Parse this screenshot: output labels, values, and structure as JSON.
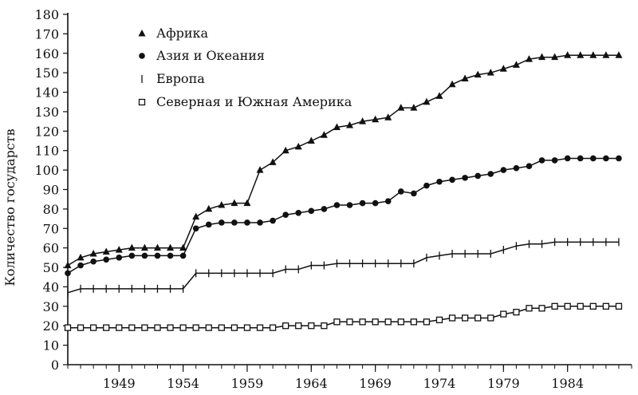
{
  "chart_data": {
    "type": "line",
    "title": "",
    "xlabel": "",
    "ylabel": "Количество государств",
    "xlim": [
      1945,
      1989
    ],
    "ylim": [
      0,
      180
    ],
    "yticks": [
      0,
      10,
      20,
      30,
      40,
      50,
      60,
      70,
      80,
      90,
      100,
      110,
      120,
      130,
      140,
      150,
      160,
      170,
      180
    ],
    "xticks": [
      1949,
      1954,
      1959,
      1964,
      1969,
      1974,
      1979,
      1984
    ],
    "grid": false,
    "legend": "top-left",
    "x": [
      1945,
      1946,
      1947,
      1948,
      1949,
      1950,
      1951,
      1952,
      1953,
      1954,
      1955,
      1956,
      1957,
      1958,
      1959,
      1960,
      1961,
      1962,
      1963,
      1964,
      1965,
      1966,
      1967,
      1968,
      1969,
      1970,
      1971,
      1972,
      1973,
      1974,
      1975,
      1976,
      1977,
      1978,
      1979,
      1980,
      1981,
      1982,
      1983,
      1984,
      1985,
      1986,
      1987,
      1988
    ],
    "series": [
      {
        "name": "Африка",
        "marker": "triangle",
        "values": [
          51,
          55,
          57,
          58,
          59,
          60,
          60,
          60,
          60,
          60,
          76,
          80,
          82,
          83,
          83,
          100,
          104,
          110,
          112,
          115,
          118,
          122,
          123,
          125,
          126,
          127,
          132,
          132,
          135,
          138,
          144,
          147,
          149,
          150,
          152,
          154,
          157,
          158,
          158,
          159,
          159,
          159,
          159,
          159
        ]
      },
      {
        "name": "Азия и Океания",
        "marker": "circle",
        "values": [
          47,
          51,
          53,
          54,
          55,
          56,
          56,
          56,
          56,
          56,
          70,
          72,
          73,
          73,
          73,
          73,
          74,
          77,
          78,
          79,
          80,
          82,
          82,
          83,
          83,
          84,
          89,
          88,
          92,
          94,
          95,
          96,
          97,
          98,
          100,
          101,
          102,
          105,
          105,
          106,
          106,
          106,
          106,
          106
        ]
      },
      {
        "name": "Европа",
        "marker": "tick",
        "values": [
          37,
          39,
          39,
          39,
          39,
          39,
          39,
          39,
          39,
          39,
          47,
          47,
          47,
          47,
          47,
          47,
          47,
          49,
          49,
          51,
          51,
          52,
          52,
          52,
          52,
          52,
          52,
          52,
          55,
          56,
          57,
          57,
          57,
          57,
          59,
          61,
          62,
          62,
          63,
          63,
          63,
          63,
          63,
          63
        ]
      },
      {
        "name": "Северная и Южная Америка",
        "marker": "square",
        "values": [
          19,
          19,
          19,
          19,
          19,
          19,
          19,
          19,
          19,
          19,
          19,
          19,
          19,
          19,
          19,
          19,
          19,
          20,
          20,
          20,
          20,
          22,
          22,
          22,
          22,
          22,
          22,
          22,
          22,
          23,
          24,
          24,
          24,
          24,
          26,
          27,
          29,
          29,
          30,
          30,
          30,
          30,
          30,
          30
        ]
      }
    ]
  }
}
